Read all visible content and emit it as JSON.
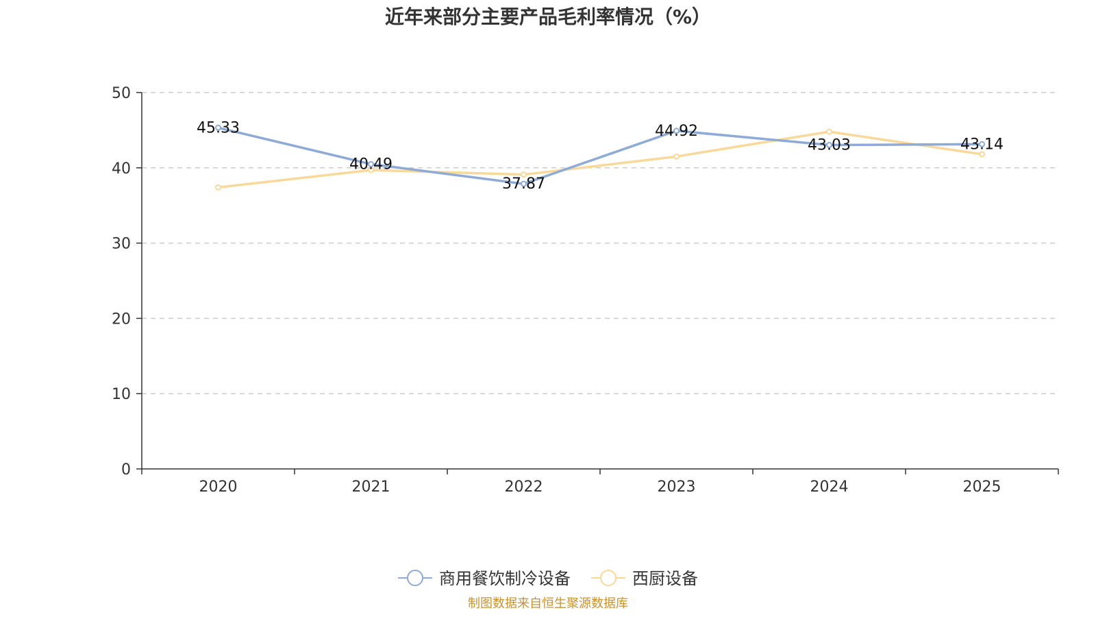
{
  "chart_data": {
    "type": "line",
    "title": "近年来部分主要产品毛利率情况（%）",
    "xlabel": "",
    "ylabel": "",
    "categories": [
      "2020",
      "2021",
      "2022",
      "2023",
      "2024",
      "2025"
    ],
    "ylim": [
      0,
      50
    ],
    "yticks": [
      0,
      10,
      20,
      30,
      40,
      50
    ],
    "grid": true,
    "legend_position": "bottom",
    "series": [
      {
        "name": "商用餐饮制冷设备",
        "color": "#8eaad6",
        "values": [
          45.33,
          40.49,
          37.87,
          44.92,
          43.03,
          43.14
        ],
        "labels": [
          "45.33",
          "40.49",
          "37.87",
          "44.92",
          "43.03",
          "43.14"
        ]
      },
      {
        "name": "西厨设备",
        "color": "#f9d99a",
        "values": [
          37.4,
          39.7,
          39.1,
          41.5,
          44.8,
          41.8
        ]
      }
    ],
    "source": "制图数据来自恒生聚源数据库"
  }
}
